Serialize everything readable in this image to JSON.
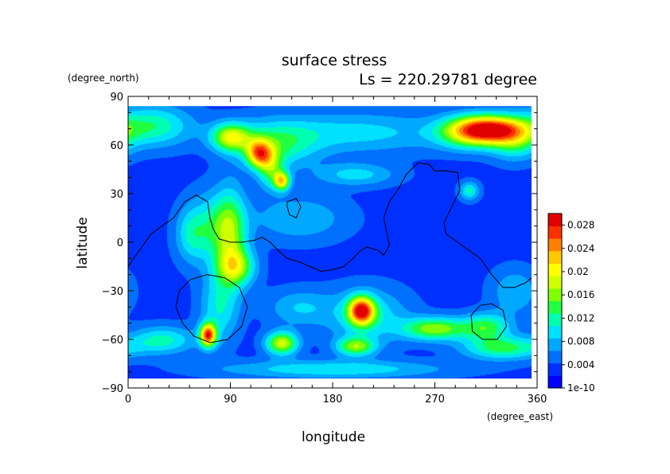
{
  "chart_data": {
    "type": "heatmap",
    "title": "surface stress",
    "subtitle": "Ls = 220.29781 degree",
    "xlabel": "longitude",
    "ylabel": "latitude",
    "x_unit": "(degree_east)",
    "y_unit": "(degree_north)",
    "xlim": [
      0,
      360
    ],
    "ylim": [
      -90,
      90
    ],
    "x_ticks": [
      "0",
      "90",
      "180",
      "270",
      "360"
    ],
    "y_ticks": [
      "90",
      "60",
      "30",
      "0",
      "−30",
      "−60",
      "−90"
    ],
    "data_extent": {
      "lon": [
        0,
        355
      ],
      "lat": [
        -84,
        84
      ]
    },
    "colorbar": {
      "min": 0,
      "max": 0.03,
      "labels": [
        "0.028",
        "0.024",
        "0.02",
        "0.016",
        "0.012",
        "0.008",
        "0.004",
        "1e-10"
      ],
      "colors": [
        "#0000ff",
        "#0030ff",
        "#0070ff",
        "#00a8ff",
        "#00e0ff",
        "#00ffb0",
        "#20ff40",
        "#80ff00",
        "#d0ff00",
        "#ffff00",
        "#ffc800",
        "#ff8000",
        "#ff3000",
        "#e00000"
      ]
    },
    "background_value": 0.0035,
    "features": [
      {
        "lon": 320,
        "lat": 70,
        "sx": 22,
        "sy": 6,
        "v": 0.02
      },
      {
        "lon": 300,
        "lat": 68,
        "sx": 20,
        "sy": 7,
        "v": 0.011
      },
      {
        "lon": 340,
        "lat": 62,
        "sx": 15,
        "sy": 8,
        "v": 0.008
      },
      {
        "lon": 20,
        "lat": 72,
        "sx": 25,
        "sy": 9,
        "v": 0.009
      },
      {
        "lon": 90,
        "lat": 65,
        "sx": 12,
        "sy": 6,
        "v": 0.014
      },
      {
        "lon": 115,
        "lat": 55,
        "sx": 8,
        "sy": 6,
        "v": 0.016
      },
      {
        "lon": 130,
        "lat": 60,
        "sx": 25,
        "sy": 10,
        "v": 0.008
      },
      {
        "lon": 200,
        "lat": 68,
        "sx": 60,
        "sy": 9,
        "v": 0.006
      },
      {
        "lon": 135,
        "lat": 38,
        "sx": 5,
        "sy": 4,
        "v": 0.016
      },
      {
        "lon": 125,
        "lat": 45,
        "sx": 8,
        "sy": 8,
        "v": 0.009
      },
      {
        "lon": 200,
        "lat": 42,
        "sx": 25,
        "sy": 5,
        "v": 0.006
      },
      {
        "lon": 300,
        "lat": 32,
        "sx": 6,
        "sy": 4,
        "v": 0.008
      },
      {
        "lon": 90,
        "lat": 5,
        "sx": 10,
        "sy": 20,
        "v": 0.01
      },
      {
        "lon": 75,
        "lat": 10,
        "sx": 15,
        "sy": 15,
        "v": 0.007
      },
      {
        "lon": 55,
        "lat": 5,
        "sx": 10,
        "sy": 12,
        "v": 0.006
      },
      {
        "lon": 95,
        "lat": -15,
        "sx": 12,
        "sy": 8,
        "v": 0.011
      },
      {
        "lon": 150,
        "lat": 15,
        "sx": 30,
        "sy": 10,
        "v": 0.005
      },
      {
        "lon": 205,
        "lat": -42,
        "sx": 8,
        "sy": 6,
        "v": 0.022
      },
      {
        "lon": 210,
        "lat": -45,
        "sx": 25,
        "sy": 12,
        "v": 0.007
      },
      {
        "lon": 70,
        "lat": -57,
        "sx": 5,
        "sy": 5,
        "v": 0.022
      },
      {
        "lon": 80,
        "lat": -40,
        "sx": 12,
        "sy": 15,
        "v": 0.007
      },
      {
        "lon": 135,
        "lat": -62,
        "sx": 10,
        "sy": 5,
        "v": 0.015
      },
      {
        "lon": 200,
        "lat": -64,
        "sx": 12,
        "sy": 4,
        "v": 0.012
      },
      {
        "lon": 270,
        "lat": -53,
        "sx": 20,
        "sy": 5,
        "v": 0.013
      },
      {
        "lon": 315,
        "lat": -52,
        "sx": 15,
        "sy": 6,
        "v": 0.01
      },
      {
        "lon": 330,
        "lat": -65,
        "sx": 25,
        "sy": 5,
        "v": 0.01
      },
      {
        "lon": 30,
        "lat": -60,
        "sx": 20,
        "sy": 6,
        "v": 0.008
      },
      {
        "lon": 180,
        "lat": -78,
        "sx": 70,
        "sy": 4,
        "v": 0.007
      },
      {
        "lon": 150,
        "lat": -40,
        "sx": 20,
        "sy": 8,
        "v": 0.005
      },
      {
        "lon": 340,
        "lat": -30,
        "sx": 15,
        "sy": 10,
        "v": 0.005
      }
    ],
    "contours": [
      {
        "name": "topography-contour-1",
        "closed": false,
        "points": [
          [
            0,
            -15
          ],
          [
            10,
            -5
          ],
          [
            20,
            5
          ],
          [
            30,
            10
          ],
          [
            40,
            15
          ],
          [
            50,
            25
          ],
          [
            60,
            29
          ],
          [
            70,
            25
          ],
          [
            72,
            15
          ],
          [
            75,
            8
          ],
          [
            80,
            2
          ],
          [
            90,
            0
          ],
          [
            100,
            0
          ],
          [
            110,
            1
          ],
          [
            118,
            3
          ],
          [
            125,
            0
          ],
          [
            132,
            -5
          ],
          [
            140,
            -10
          ],
          [
            150,
            -12
          ],
          [
            160,
            -15
          ],
          [
            170,
            -18
          ],
          [
            180,
            -17
          ],
          [
            190,
            -15
          ],
          [
            198,
            -10
          ],
          [
            205,
            -5
          ],
          [
            210,
            -3
          ],
          [
            220,
            -5
          ],
          [
            225,
            -8
          ],
          [
            230,
            -2
          ],
          [
            228,
            5
          ],
          [
            225,
            15
          ],
          [
            230,
            25
          ],
          [
            238,
            33
          ],
          [
            245,
            42
          ],
          [
            255,
            49
          ],
          [
            265,
            48
          ],
          [
            270,
            44
          ],
          [
            280,
            44
          ],
          [
            290,
            43
          ],
          [
            292,
            32
          ],
          [
            285,
            22
          ],
          [
            278,
            12
          ],
          [
            280,
            5
          ],
          [
            290,
            0
          ],
          [
            300,
            -5
          ],
          [
            310,
            -10
          ],
          [
            315,
            -15
          ],
          [
            320,
            -20
          ],
          [
            330,
            -28
          ],
          [
            340,
            -28
          ],
          [
            350,
            -25
          ],
          [
            355,
            -22
          ]
        ]
      },
      {
        "name": "topography-contour-2",
        "closed": true,
        "points": [
          [
            140,
            25
          ],
          [
            148,
            27
          ],
          [
            152,
            22
          ],
          [
            148,
            15
          ],
          [
            142,
            17
          ],
          [
            140,
            22
          ]
        ]
      },
      {
        "name": "topography-contour-3",
        "closed": true,
        "points": [
          [
            70,
            -20
          ],
          [
            85,
            -22
          ],
          [
            98,
            -28
          ],
          [
            105,
            -40
          ],
          [
            100,
            -52
          ],
          [
            88,
            -60
          ],
          [
            72,
            -62
          ],
          [
            58,
            -58
          ],
          [
            48,
            -50
          ],
          [
            42,
            -40
          ],
          [
            45,
            -30
          ],
          [
            55,
            -23
          ]
        ]
      },
      {
        "name": "topography-contour-4",
        "closed": true,
        "points": [
          [
            320,
            -38
          ],
          [
            330,
            -42
          ],
          [
            333,
            -52
          ],
          [
            325,
            -60
          ],
          [
            312,
            -60
          ],
          [
            303,
            -55
          ],
          [
            302,
            -45
          ],
          [
            310,
            -39
          ]
        ]
      }
    ]
  }
}
